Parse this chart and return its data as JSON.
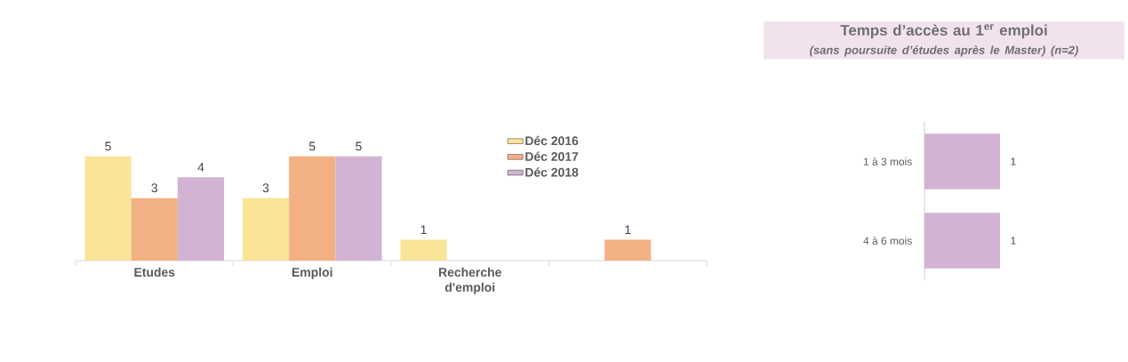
{
  "chart_data": [
    {
      "type": "bar",
      "categories": [
        "Etudes",
        "Emploi",
        "Recherche d'emploi",
        null
      ],
      "data_labels": true,
      "legend": "top right",
      "series": [
        {
          "name": "Déc 2016",
          "color": "#f9e498",
          "values": [
            5,
            3,
            1,
            null
          ]
        },
        {
          "name": "Déc 2017",
          "color": "#f3b183",
          "values": [
            3,
            5,
            null,
            1
          ]
        },
        {
          "name": "Déc 2018",
          "color": "#d2b3d4",
          "values": [
            4,
            5,
            null,
            null
          ]
        }
      ]
    },
    {
      "type": "bar",
      "orientation": "horizontal",
      "title": "Temps d’accès au 1$^{er}$ emploi",
      "subtitle": "(sans poursuite d’études après le Master) (n=2)",
      "categories": [
        "1 à 3 mois",
        "4 à 6 mois"
      ],
      "values": [
        1,
        1
      ],
      "color": "#d2b3d4",
      "data_labels": true
    }
  ]
}
